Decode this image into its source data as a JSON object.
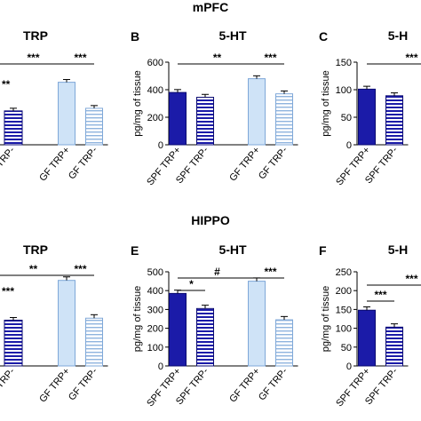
{
  "sections": {
    "top": "mPFC",
    "bottom": "HIPPO"
  },
  "colors": {
    "spf_trp_plus": "#1b1ba8",
    "spf_trp_minus": "#2a2aa8",
    "gf_trp_plus": "#cfe3f7",
    "gf_trp_minus": "#dbe9f7",
    "stroke_dark": "#0a0a70",
    "stroke_light": "#7fa8d8"
  },
  "chart_data": [
    {
      "panel": "",
      "title": "TRP",
      "type": "bar",
      "categories": [
        "GF TRP+",
        "GF TRP-"
      ],
      "partial_categories": [
        "TRP-"
      ],
      "values": [
        480,
        280
      ],
      "visible_partial_values": [
        260
      ],
      "significance": [
        {
          "label": "***",
          "pair": "SPF TRP+ vs GF TRP+"
        },
        {
          "label": "***",
          "pair": "GF TRP+ vs GF TRP-"
        },
        {
          "label": "**",
          "pair": "SPF TRP+ vs SPF TRP-"
        }
      ]
    },
    {
      "panel": "B",
      "title": "5-HT",
      "type": "bar",
      "categories": [
        "SPF TRP+",
        "SPF TRP-",
        "GF TRP+",
        "GF TRP-"
      ],
      "values": [
        380,
        345,
        480,
        370
      ],
      "ylabel": "pg/mg of tissue",
      "ylim": [
        0,
        600
      ],
      "yticks": [
        0,
        200,
        400,
        600
      ],
      "significance": [
        {
          "label": "**",
          "pair": "SPF TRP+ vs GF TRP+"
        },
        {
          "label": "***",
          "pair": "GF TRP+ vs GF TRP-"
        }
      ]
    },
    {
      "panel": "C",
      "title": "5-H",
      "type": "bar",
      "categories": [
        "SPF TRP+",
        "SPF TRP-"
      ],
      "values": [
        101,
        89
      ],
      "ylabel": "pg/mg of tissue",
      "ylim": [
        0,
        150
      ],
      "yticks": [
        0,
        50,
        100,
        150
      ],
      "significance": [
        {
          "label": "***",
          "pair": "SPF TRP+ vs GF"
        }
      ]
    },
    {
      "panel": "",
      "title": "TRP",
      "type": "bar",
      "categories": [
        "GF TRP+",
        "GF TRP-"
      ],
      "partial_categories": [
        "TRP-"
      ],
      "values": [
        430,
        240
      ],
      "visible_partial_values": [
        230
      ],
      "significance": [
        {
          "label": "**",
          "pair": "SPF TRP+ vs GF TRP+"
        },
        {
          "label": "***",
          "pair": "GF TRP+ vs GF TRP-"
        },
        {
          "label": "**",
          "pair": "SPF TRP+ vs SPF TRP-"
        }
      ]
    },
    {
      "panel": "E",
      "title": "5-HT",
      "type": "bar",
      "categories": [
        "SPF TRP+",
        "SPF TRP-",
        "GF TRP+",
        "GF TRP-"
      ],
      "values": [
        385,
        305,
        450,
        245
      ],
      "ylabel": "pg/mg of tissue",
      "ylim": [
        0,
        500
      ],
      "yticks": [
        0,
        100,
        200,
        300,
        400,
        500
      ],
      "significance": [
        {
          "label": "#",
          "pair": "SPF TRP+ vs GF TRP+"
        },
        {
          "label": "*",
          "pair": "SPF TRP+ vs SPF TRP-"
        },
        {
          "label": "***",
          "pair": "GF TRP+ vs GF TRP-"
        }
      ]
    },
    {
      "panel": "F",
      "title": "5-H",
      "type": "bar",
      "categories": [
        "SPF TRP+",
        "SPF TRP-"
      ],
      "values": [
        148,
        103
      ],
      "ylabel": "pg/mg of tissue",
      "ylim": [
        0,
        250
      ],
      "yticks": [
        0,
        50,
        100,
        150,
        200,
        250
      ],
      "significance": [
        {
          "label": "***",
          "pair": "SPF TRP+ vs SPF TRP-"
        },
        {
          "label": "***",
          "pair": "SPF TRP+ vs GF"
        }
      ]
    }
  ]
}
